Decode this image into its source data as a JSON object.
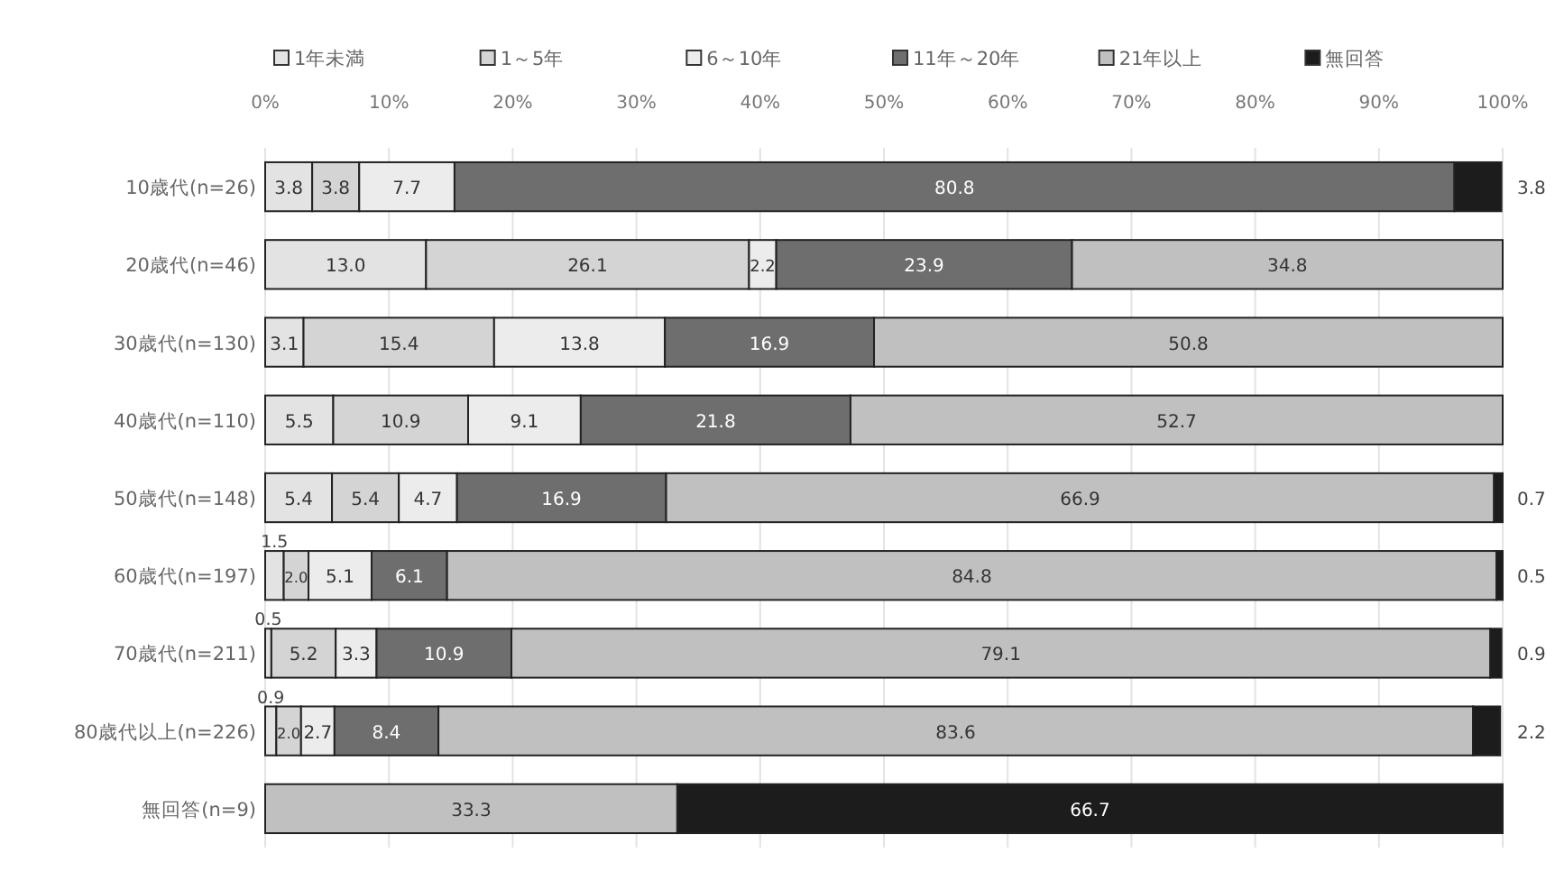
{
  "chart_data": {
    "type": "bar",
    "orientation": "horizontal",
    "stacked": true,
    "categories": [
      "10歳代(n=26)",
      "20歳代(n=46)",
      "30歳代(n=130)",
      "40歳代(n=110)",
      "50歳代(n=148)",
      "60歳代(n=197)",
      "70歳代(n=211)",
      "80歳代以上(n=226)",
      "無回答(n=9)"
    ],
    "series": [
      {
        "name": "1年未満",
        "color": "#e3e3e3",
        "values": [
          3.8,
          13.0,
          3.1,
          5.5,
          5.4,
          1.5,
          0.5,
          0.9,
          null
        ],
        "value_labels": [
          "3.8",
          "13.0",
          "3.1",
          "5.5",
          "5.4",
          "1.5",
          "0.5",
          "0.9",
          null
        ]
      },
      {
        "name": "1～5年",
        "color": "#d4d4d4",
        "values": [
          3.8,
          26.1,
          15.4,
          10.9,
          5.4,
          2.0,
          5.2,
          2.0,
          null
        ],
        "value_labels": [
          "3.8",
          "26.1",
          "15.4",
          "10.9",
          "5.4",
          "2.0",
          "5.2",
          "2.0",
          null
        ]
      },
      {
        "name": "6～10年",
        "color": "#ececec",
        "values": [
          7.7,
          2.2,
          13.8,
          9.1,
          4.7,
          5.1,
          3.3,
          2.7,
          null
        ],
        "value_labels": [
          "7.7",
          "2.2",
          "13.8",
          "9.1",
          "4.7",
          "5.1",
          "3.3",
          "2.7",
          null
        ]
      },
      {
        "name": "11年～20年",
        "color": "#6e6e6e",
        "values": [
          80.8,
          23.9,
          16.9,
          21.8,
          16.9,
          6.1,
          10.9,
          8.4,
          null
        ],
        "value_labels": [
          "80.8",
          "23.9",
          "16.9",
          "21.8",
          "16.9",
          "6.1",
          "10.9",
          "8.4",
          null
        ]
      },
      {
        "name": "21年以上",
        "color": "#c0c0c0",
        "values": [
          null,
          34.8,
          50.8,
          52.7,
          66.9,
          84.8,
          79.1,
          83.6,
          33.3
        ],
        "value_labels": [
          null,
          "34.8",
          "50.8",
          "52.7",
          "66.9",
          "84.8",
          "79.1",
          "83.6",
          "33.3"
        ]
      },
      {
        "name": "無回答",
        "color": "#1c1c1c",
        "values": [
          3.8,
          null,
          null,
          null,
          0.7,
          0.5,
          0.9,
          2.2,
          66.7
        ],
        "value_labels": [
          "3.8",
          null,
          null,
          null,
          "0.7",
          "0.5",
          "0.9",
          "2.2",
          "66.7"
        ]
      }
    ],
    "xlim": [
      0,
      100
    ],
    "xticks": [
      {
        "value": 0,
        "label": "0%"
      },
      {
        "value": 10,
        "label": "10%"
      },
      {
        "value": 20,
        "label": "20%"
      },
      {
        "value": 30,
        "label": "30%"
      },
      {
        "value": 40,
        "label": "40%"
      },
      {
        "value": 50,
        "label": "50%"
      },
      {
        "value": 60,
        "label": "60%"
      },
      {
        "value": 70,
        "label": "70%"
      },
      {
        "value": 80,
        "label": "80%"
      },
      {
        "value": 90,
        "label": "90%"
      },
      {
        "value": 100,
        "label": "100%"
      }
    ],
    "grid": "x",
    "legend": "top"
  }
}
